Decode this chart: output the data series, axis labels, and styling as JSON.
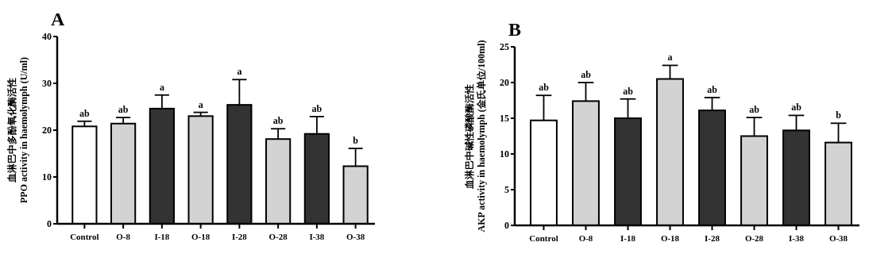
{
  "chart_data": [
    {
      "type": "bar",
      "title": "A",
      "ylabel": "血淋巴中多酚氧化酶活性\nPPO activity in haemolymph (U/ml)",
      "categories": [
        "Control",
        "O-8",
        "I-18",
        "O-18",
        "I-28",
        "O-28",
        "I-38",
        "O-38"
      ],
      "values": [
        20.8,
        21.4,
        24.6,
        23.0,
        25.4,
        18.1,
        19.2,
        12.3
      ],
      "errors": [
        1.1,
        1.3,
        2.9,
        0.8,
        5.4,
        2.2,
        3.7,
        3.8
      ],
      "colors": [
        "#ffffff",
        "#d3d3d3",
        "#333333",
        "#d3d3d3",
        "#333333",
        "#d3d3d3",
        "#333333",
        "#d3d3d3"
      ],
      "ylim": [
        0,
        40
      ],
      "yticks": [
        0,
        10,
        20,
        30,
        40
      ],
      "grid": false,
      "annotations": [
        {
          "text": "ab",
          "x": "Control",
          "y": 21.9
        },
        {
          "text": "ab",
          "x": "O-8",
          "y": 22.7
        },
        {
          "text": "a",
          "x": "I-18",
          "y": 27.5
        },
        {
          "text": "a",
          "x": "O-18",
          "y": 23.8
        },
        {
          "text": "a",
          "x": "I-28",
          "y": 30.8
        },
        {
          "text": "ab",
          "x": "O-28",
          "y": 20.3
        },
        {
          "text": "ab",
          "x": "I-38",
          "y": 22.9
        },
        {
          "text": "b",
          "x": "O-38",
          "y": 16.1
        }
      ]
    },
    {
      "type": "bar",
      "title": "B",
      "ylabel": "血淋巴中碱性磷酸酶活性\nAKP activity in haemolymph (金氏单位/100ml)",
      "categories": [
        "Control",
        "O-8",
        "I-18",
        "O-18",
        "I-28",
        "O-28",
        "I-38",
        "O-38"
      ],
      "values": [
        14.7,
        17.4,
        15.0,
        20.5,
        16.1,
        12.5,
        13.3,
        11.6
      ],
      "errors": [
        3.5,
        2.6,
        2.7,
        1.9,
        1.8,
        2.6,
        2.1,
        2.7
      ],
      "colors": [
        "#ffffff",
        "#d3d3d3",
        "#333333",
        "#d3d3d3",
        "#333333",
        "#d3d3d3",
        "#333333",
        "#d3d3d3"
      ],
      "ylim": [
        0,
        25
      ],
      "yticks": [
        0,
        5,
        10,
        15,
        20,
        25
      ],
      "grid": false,
      "annotations": [
        {
          "text": "ab",
          "x": "Control",
          "y": 18.2
        },
        {
          "text": "ab",
          "x": "O-8",
          "y": 20.0
        },
        {
          "text": "ab",
          "x": "I-18",
          "y": 17.7
        },
        {
          "text": "a",
          "x": "O-18",
          "y": 22.4
        },
        {
          "text": "ab",
          "x": "I-28",
          "y": 17.9
        },
        {
          "text": "ab",
          "x": "O-28",
          "y": 15.1
        },
        {
          "text": "ab",
          "x": "I-38",
          "y": 15.4
        },
        {
          "text": "b",
          "x": "O-38",
          "y": 14.3
        }
      ]
    }
  ]
}
